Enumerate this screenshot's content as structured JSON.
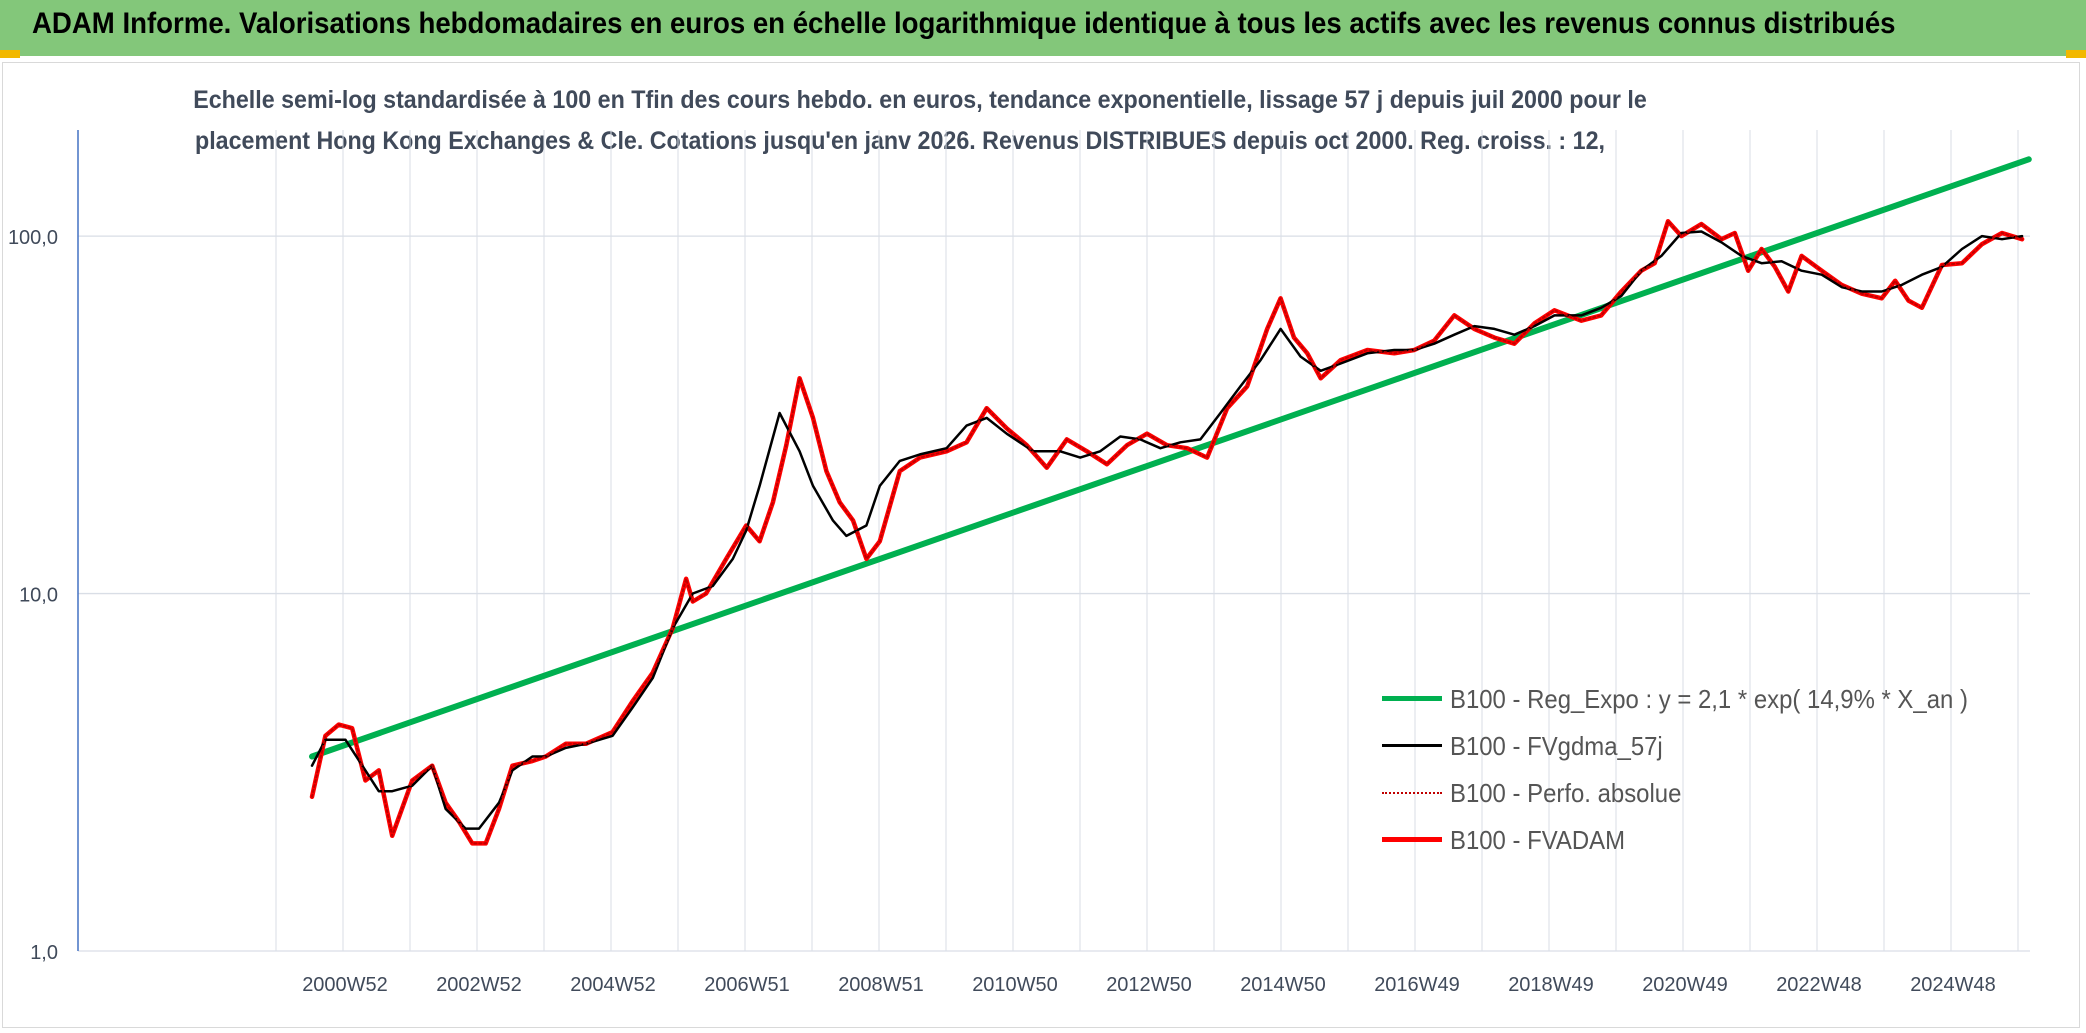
{
  "header": {
    "title": "ADAM Informe. Valorisations hebdomadaires en euros en échelle logarithmique identique à tous les actifs avec les revenus connus distribués"
  },
  "colors": {
    "banner": "#83c77a",
    "regression": "#00b050",
    "smoothed": "#000000",
    "absolute": "#c00000",
    "fvadam": "#ff0000",
    "grid": "#d9dee6",
    "axis_text": "#404a5a"
  },
  "chart_data": {
    "type": "line",
    "title_line1": "Echelle semi-log standardisée à 100 en Tfin des cours hebdo. en euros, tendance exponentielle, lissage 57 j depuis juil 2000 pour le",
    "title_line2": "placement Hong Kong Exchanges & Cle. Cotations jusqu'en janv 2026. Revenus DISTRIBUES depuis oct 2000. Reg. croiss. : 12,",
    "y_scale": "log",
    "ylim": [
      1,
      200
    ],
    "y_ticks": [
      "1,0",
      "10,0",
      "100,0"
    ],
    "x_ticks": [
      "2000W52",
      "2002W52",
      "2004W52",
      "2006W51",
      "2008W51",
      "2010W50",
      "2012W50",
      "2014W50",
      "2016W49",
      "2018W49",
      "2020W49",
      "2022W48",
      "2024W48"
    ],
    "xlim": [
      1998.0,
      2026.3
    ],
    "grid": true,
    "legend_position": "bottom-right",
    "series": [
      {
        "name": "B100 - Reg_Expo : y = 2,1 * exp( 14,9% *  X_an )",
        "style": "solid-thick",
        "x": [
          2000.5,
          2026.2
        ],
        "y": [
          3.5,
          164
        ]
      },
      {
        "name": "B100 - FVgdma_57j",
        "style": "solid-thin",
        "x": [
          2000.5,
          2000.7,
          2001.0,
          2001.3,
          2001.5,
          2001.7,
          2002.0,
          2002.3,
          2002.5,
          2002.8,
          2003.0,
          2003.3,
          2003.5,
          2003.8,
          2004.0,
          2004.3,
          2004.6,
          2005.0,
          2005.3,
          2005.6,
          2005.9,
          2006.2,
          2006.5,
          2006.8,
          2007.0,
          2007.2,
          2007.5,
          2007.8,
          2008.0,
          2008.3,
          2008.5,
          2008.8,
          2009.0,
          2009.3,
          2009.6,
          2010.0,
          2010.3,
          2010.6,
          2010.9,
          2011.3,
          2011.7,
          2012.0,
          2012.3,
          2012.6,
          2012.9,
          2013.2,
          2013.5,
          2013.8,
          2014.1,
          2014.4,
          2014.7,
          2015.0,
          2015.3,
          2015.6,
          2015.9,
          2016.3,
          2016.7,
          2017.0,
          2017.3,
          2017.6,
          2017.9,
          2018.2,
          2018.5,
          2018.8,
          2019.1,
          2019.5,
          2019.8,
          2020.1,
          2020.4,
          2020.7,
          2021.0,
          2021.3,
          2021.6,
          2021.9,
          2022.2,
          2022.5,
          2022.8,
          2023.1,
          2023.4,
          2023.7,
          2024.0,
          2024.3,
          2024.6,
          2024.9,
          2025.2,
          2025.5,
          2025.8,
          2026.1
        ],
        "y": [
          3.3,
          3.9,
          3.9,
          3.2,
          2.8,
          2.8,
          2.9,
          3.3,
          2.5,
          2.2,
          2.2,
          2.6,
          3.2,
          3.5,
          3.5,
          3.7,
          3.8,
          4.0,
          4.8,
          5.8,
          8.0,
          10.0,
          10.5,
          12.5,
          15.0,
          20.0,
          32.0,
          25.0,
          20.0,
          16.0,
          14.5,
          15.5,
          20.0,
          23.5,
          24.5,
          25.5,
          29.5,
          31.0,
          28.0,
          25.0,
          25.0,
          24.0,
          25.0,
          27.5,
          27.0,
          25.5,
          26.5,
          27.0,
          32.0,
          38.0,
          45.0,
          55.0,
          46.0,
          42.0,
          44.0,
          47.0,
          48.0,
          48.0,
          50.0,
          53.0,
          56.0,
          55.0,
          53.0,
          56.0,
          60.0,
          60.0,
          63.0,
          68.0,
          80.0,
          88.0,
          102.0,
          103.0,
          96.0,
          88.0,
          84.0,
          85.0,
          80.0,
          78.0,
          72.0,
          70.0,
          70.0,
          73.0,
          78.0,
          82.0,
          92.0,
          100.0,
          98.0,
          100.0
        ]
      },
      {
        "name": "B100 - Perfo. absolue",
        "style": "dotted",
        "x": [
          2000.5,
          2000.7,
          2000.9,
          2001.1,
          2001.3,
          2001.5,
          2001.7,
          2002.0,
          2002.3,
          2002.5,
          2002.7,
          2002.9,
          2003.1,
          2003.3,
          2003.5,
          2003.8,
          2004.0,
          2004.3,
          2004.6,
          2005.0,
          2005.3,
          2005.6,
          2005.9,
          2006.1,
          2006.2,
          2006.4,
          2006.7,
          2007.0,
          2007.2,
          2007.4,
          2007.6,
          2007.8,
          2008.0,
          2008.2,
          2008.4,
          2008.6,
          2008.8,
          2009.0,
          2009.3,
          2009.6,
          2010.0,
          2010.3,
          2010.6,
          2010.9,
          2011.2,
          2011.5,
          2011.8,
          2012.1,
          2012.4,
          2012.7,
          2013.0,
          2013.3,
          2013.6,
          2013.9,
          2014.2,
          2014.5,
          2014.8,
          2015.0,
          2015.2,
          2015.4,
          2015.6,
          2015.9,
          2016.3,
          2016.7,
          2017.0,
          2017.3,
          2017.6,
          2017.9,
          2018.2,
          2018.5,
          2018.8,
          2019.1,
          2019.5,
          2019.8,
          2020.1,
          2020.4,
          2020.6,
          2020.8,
          2021.0,
          2021.3,
          2021.6,
          2021.8,
          2022.0,
          2022.2,
          2022.4,
          2022.6,
          2022.8,
          2023.1,
          2023.4,
          2023.7,
          2024.0,
          2024.2,
          2024.4,
          2024.6,
          2024.9,
          2025.2,
          2025.5,
          2025.8,
          2026.1
        ],
        "y": [
          2.7,
          4.0,
          4.3,
          4.2,
          3.0,
          3.2,
          2.1,
          3.0,
          3.3,
          2.6,
          2.3,
          2.0,
          2.0,
          2.5,
          3.3,
          3.4,
          3.5,
          3.8,
          3.8,
          4.1,
          5.0,
          6.0,
          8.0,
          11.0,
          9.5,
          10.0,
          12.5,
          15.5,
          14.0,
          18.0,
          26.0,
          40.0,
          31.0,
          22.0,
          18.0,
          16.0,
          12.5,
          14.0,
          22.0,
          24.0,
          25.0,
          26.5,
          33.0,
          29.0,
          26.0,
          22.5,
          27.0,
          25.0,
          23.0,
          26.0,
          28.0,
          26.0,
          25.5,
          24.0,
          33.0,
          38.0,
          55.0,
          67.0,
          52.0,
          47.0,
          40.0,
          45.0,
          48.0,
          47.0,
          48.0,
          51.0,
          60.0,
          55.0,
          52.0,
          50.0,
          57.0,
          62.0,
          58.0,
          60.0,
          70.0,
          80.0,
          84.0,
          110.0,
          100.0,
          108.0,
          98.0,
          102.0,
          80.0,
          92.0,
          82.0,
          70.0,
          88.0,
          80.0,
          73.0,
          69.0,
          67.0,
          75.0,
          66.0,
          63.0,
          83.0,
          84.0,
          95.0,
          102.0,
          98.0
        ]
      },
      {
        "name": "B100 - FVADAM",
        "style": "solid-thick",
        "x": [
          2000.5,
          2000.7,
          2000.9,
          2001.1,
          2001.3,
          2001.5,
          2001.7,
          2002.0,
          2002.3,
          2002.5,
          2002.7,
          2002.9,
          2003.1,
          2003.3,
          2003.5,
          2003.8,
          2004.0,
          2004.3,
          2004.6,
          2005.0,
          2005.3,
          2005.6,
          2005.9,
          2006.1,
          2006.2,
          2006.4,
          2006.7,
          2007.0,
          2007.2,
          2007.4,
          2007.6,
          2007.8,
          2008.0,
          2008.2,
          2008.4,
          2008.6,
          2008.8,
          2009.0,
          2009.3,
          2009.6,
          2010.0,
          2010.3,
          2010.6,
          2010.9,
          2011.2,
          2011.5,
          2011.8,
          2012.1,
          2012.4,
          2012.7,
          2013.0,
          2013.3,
          2013.6,
          2013.9,
          2014.2,
          2014.5,
          2014.8,
          2015.0,
          2015.2,
          2015.4,
          2015.6,
          2015.9,
          2016.3,
          2016.7,
          2017.0,
          2017.3,
          2017.6,
          2017.9,
          2018.2,
          2018.5,
          2018.8,
          2019.1,
          2019.5,
          2019.8,
          2020.1,
          2020.4,
          2020.6,
          2020.8,
          2021.0,
          2021.3,
          2021.6,
          2021.8,
          2022.0,
          2022.2,
          2022.4,
          2022.6,
          2022.8,
          2023.1,
          2023.4,
          2023.7,
          2024.0,
          2024.2,
          2024.4,
          2024.6,
          2024.9,
          2025.2,
          2025.5,
          2025.8,
          2026.1
        ],
        "y": [
          2.7,
          4.0,
          4.3,
          4.2,
          3.0,
          3.2,
          2.1,
          3.0,
          3.3,
          2.6,
          2.3,
          2.0,
          2.0,
          2.5,
          3.3,
          3.4,
          3.5,
          3.8,
          3.8,
          4.1,
          5.0,
          6.0,
          8.0,
          11.0,
          9.5,
          10.0,
          12.5,
          15.5,
          14.0,
          18.0,
          26.0,
          40.0,
          31.0,
          22.0,
          18.0,
          16.0,
          12.5,
          14.0,
          22.0,
          24.0,
          25.0,
          26.5,
          33.0,
          29.0,
          26.0,
          22.5,
          27.0,
          25.0,
          23.0,
          26.0,
          28.0,
          26.0,
          25.5,
          24.0,
          33.0,
          38.0,
          55.0,
          67.0,
          52.0,
          47.0,
          40.0,
          45.0,
          48.0,
          47.0,
          48.0,
          51.0,
          60.0,
          55.0,
          52.0,
          50.0,
          57.0,
          62.0,
          58.0,
          60.0,
          70.0,
          80.0,
          84.0,
          110.0,
          100.0,
          108.0,
          98.0,
          102.0,
          80.0,
          92.0,
          82.0,
          70.0,
          88.0,
          80.0,
          73.0,
          69.0,
          67.0,
          75.0,
          66.0,
          63.0,
          83.0,
          84.0,
          95.0,
          102.0,
          98.0
        ]
      }
    ]
  }
}
